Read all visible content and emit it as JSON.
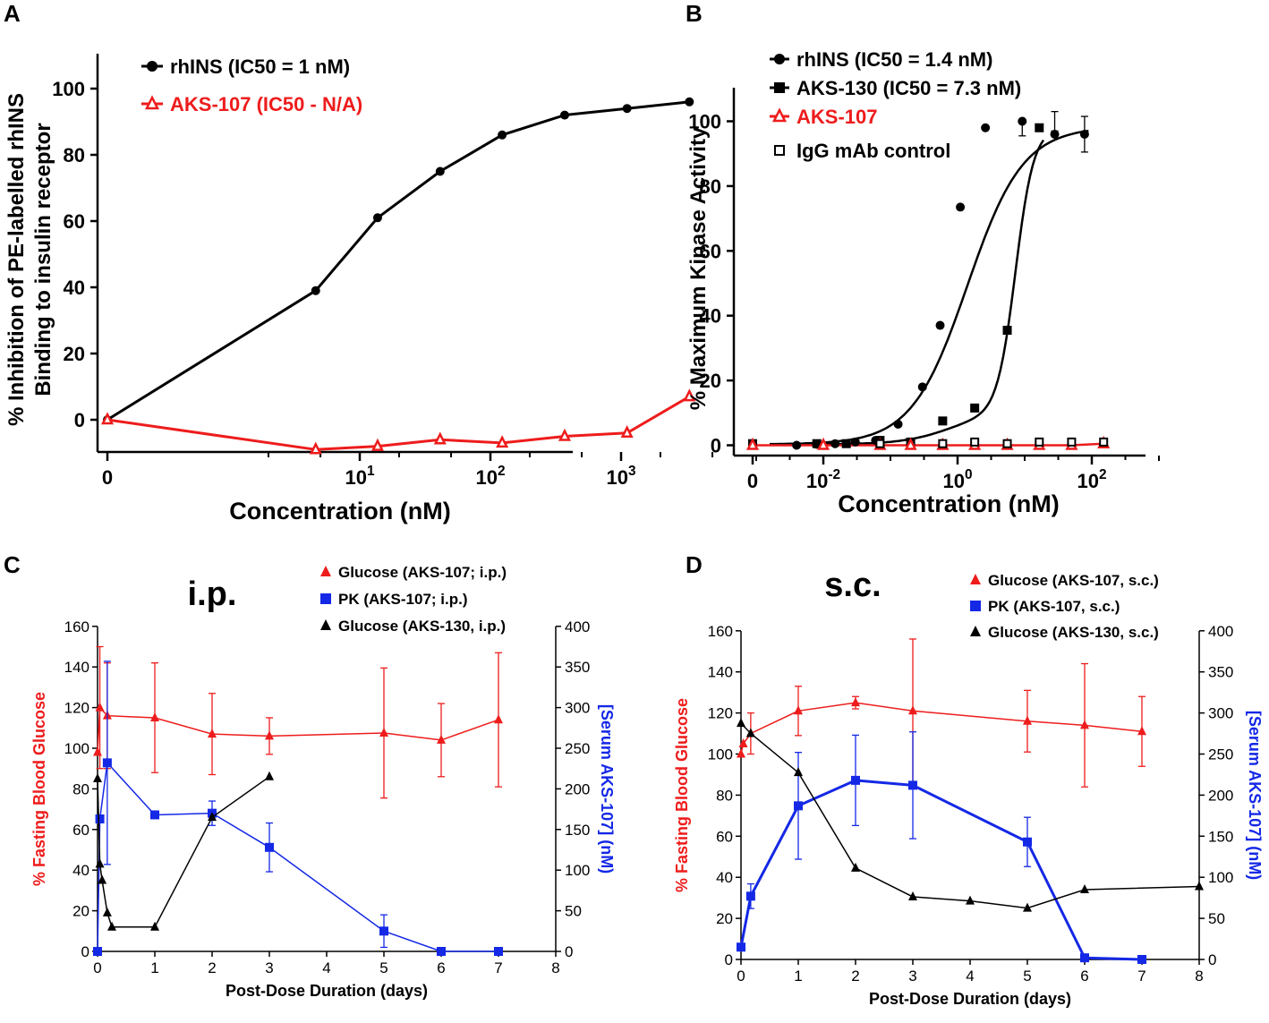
{
  "colors": {
    "black": "#000000",
    "red": "#ee1c1c",
    "blue": "#1428e6"
  },
  "chart_data": [
    {
      "panel": "A",
      "type": "line",
      "xscale": "symlog",
      "xlabel": "Concentration (nM)",
      "ylabel_line1": "% Inhibition of PE-labelled rhINS",
      "ylabel_line2": "Binding to insulin receptor",
      "ylim": [
        -10,
        110
      ],
      "yticks": [
        "0",
        "20",
        "40",
        "60",
        "80",
        "100"
      ],
      "xticks": [
        {
          "base": "0",
          "exp": ""
        },
        {
          "base": "10",
          "exp": "1"
        },
        {
          "base": "10",
          "exp": "2"
        },
        {
          "base": "10",
          "exp": "3"
        }
      ],
      "series": [
        {
          "name": "rhINS (IC50 = 1 nM)",
          "color": "#000000",
          "marker": "circle",
          "x": [
            0,
            4.6,
            13.7,
            41.2,
            123,
            370,
            1111,
            3333
          ],
          "y": [
            0,
            39,
            61,
            75,
            86,
            92,
            94,
            96
          ]
        },
        {
          "name": "AKS-107 (IC50 - N/A)",
          "color": "#ee1c1c",
          "marker": "open-triangle",
          "x": [
            0,
            4.6,
            13.7,
            41.2,
            123,
            370,
            1111,
            3333
          ],
          "y": [
            0,
            -9,
            -8,
            -6,
            -7,
            -5,
            -4,
            7
          ]
        }
      ]
    },
    {
      "panel": "B",
      "type": "scatter",
      "xscale": "symlog",
      "xlabel": "Concentration (nM)",
      "ylabel": "% Maximum Kinase Activity",
      "ylim": [
        -3,
        110
      ],
      "yticks": [
        "0",
        "20",
        "40",
        "60",
        "80",
        "100"
      ],
      "xticks": [
        {
          "base": "0",
          "exp": ""
        },
        {
          "base": "10",
          "exp": "-2"
        },
        {
          "base": "10",
          "exp": "0"
        },
        {
          "base": "10",
          "exp": "2"
        }
      ],
      "series": [
        {
          "name": "rhINS (IC50 = 1.4 nM)",
          "color": "#000000",
          "marker": "circle",
          "fit": "sigmoid-1",
          "x": [
            0,
            0.004,
            0.008,
            0.015,
            0.03,
            0.06,
            0.13,
            0.3,
            0.55,
            1.1,
            2.6,
            9.2,
            28,
            78
          ],
          "y": [
            0.5,
            0,
            0.3,
            0.5,
            1,
            1.5,
            6.5,
            18,
            37,
            73.5,
            98,
            100,
            96,
            96
          ]
        },
        {
          "name": "AKS-130 (IC50 = 7.3 nM)",
          "color": "#000000",
          "marker": "square",
          "fit": "sigmoid-2",
          "x": [
            0,
            0.008,
            0.022,
            0.07,
            0.2,
            0.6,
            1.8,
            5.5,
            16.5
          ],
          "y": [
            0.5,
            0.5,
            0.5,
            1.5,
            1,
            7.5,
            11.5,
            35.5,
            98
          ]
        },
        {
          "name": "AKS-107",
          "color": "#ee1c1c",
          "marker": "open-triangle",
          "x": [
            0,
            0.01,
            0.07,
            0.2,
            0.6,
            1.8,
            5.5,
            16.5,
            50,
            150
          ],
          "y": [
            0,
            0,
            0,
            0,
            0,
            0,
            0,
            0,
            0,
            0.5
          ]
        },
        {
          "name": "IgG mAb control",
          "color": "#000000",
          "marker": "open-square",
          "x": [
            0.07,
            0.6,
            1.8,
            5.5,
            16.5,
            50,
            150
          ],
          "y": [
            0.5,
            0.5,
            1,
            0.5,
            1,
            1,
            1
          ]
        }
      ],
      "errors": [
        {
          "x": 9.2,
          "y": 98,
          "err": 2.5
        },
        {
          "x": 28,
          "y": 100,
          "err": 3
        },
        {
          "x": 78,
          "y": 96,
          "err": 5.5
        }
      ]
    },
    {
      "panel": "C",
      "type": "line",
      "title": "i.p.",
      "xlabel": "Post-Dose Duration (days)",
      "ylabel_left": "% Fasting Blood Glucose",
      "ylabel_right": "[Serum AKS-107] (nM)",
      "xlim": [
        0,
        8
      ],
      "ylim_left": [
        0,
        160
      ],
      "ylim_right": [
        0,
        400
      ],
      "xticks": [
        "0",
        "1",
        "2",
        "3",
        "4",
        "5",
        "6",
        "7",
        "8"
      ],
      "yticks_left": [
        "0",
        "20",
        "40",
        "60",
        "80",
        "100",
        "120",
        "140",
        "160"
      ],
      "yticks_right": [
        "0",
        "50",
        "100",
        "150",
        "200",
        "250",
        "300",
        "350",
        "400"
      ],
      "series": [
        {
          "name": "Glucose (AKS-107; i.p.)",
          "color": "#ee1c1c",
          "marker": "triangle",
          "axis": "left",
          "x": [
            0,
            0.04,
            0.17,
            1,
            2,
            3,
            5,
            6,
            7
          ],
          "y": [
            98,
            120,
            116,
            115,
            107,
            106,
            107.5,
            104,
            114
          ],
          "err": [
            0,
            30,
            26,
            27,
            20,
            9,
            32,
            18,
            33
          ]
        },
        {
          "name": "PK (AKS-107; i.p.)",
          "color": "#1428e6",
          "marker": "square",
          "axis": "right",
          "x": [
            0,
            0.04,
            0.17,
            1,
            2,
            3,
            5,
            6,
            7
          ],
          "y": [
            0,
            163,
            232,
            168,
            170,
            128,
            25,
            0,
            0
          ],
          "err": [
            0,
            0,
            125,
            0,
            15,
            30,
            20,
            0,
            0
          ]
        },
        {
          "name": "Glucose (AKS-130, i.p.)",
          "color": "#000000",
          "marker": "triangle",
          "axis": "left",
          "x": [
            0,
            0.04,
            0.08,
            0.17,
            0.25,
            1,
            2,
            3
          ],
          "y": [
            85,
            43,
            35,
            19,
            12,
            12,
            66,
            86
          ],
          "err": [
            0,
            0,
            0,
            0,
            0,
            0,
            0,
            0
          ]
        }
      ]
    },
    {
      "panel": "D",
      "type": "line",
      "title": "s.c.",
      "xlabel": "Post-Dose Duration (days)",
      "ylabel_left": "% Fasting Blood Glucose",
      "ylabel_right": "[Serum AKS-107] (nM)",
      "xlim": [
        0,
        8
      ],
      "ylim_left": [
        0,
        160
      ],
      "ylim_right": [
        0,
        400
      ],
      "xticks": [
        "0",
        "1",
        "2",
        "3",
        "4",
        "5",
        "6",
        "7",
        "8"
      ],
      "yticks_left": [
        "0",
        "20",
        "40",
        "60",
        "80",
        "100",
        "120",
        "140",
        "160"
      ],
      "yticks_right": [
        "0",
        "50",
        "100",
        "150",
        "200",
        "250",
        "300",
        "350",
        "400"
      ],
      "series": [
        {
          "name": "Glucose (AKS-107, s.c.)",
          "color": "#ee1c1c",
          "marker": "triangle",
          "axis": "left",
          "x": [
            0,
            0.04,
            0.17,
            1,
            2,
            3,
            5,
            6,
            7
          ],
          "y": [
            100,
            105,
            110,
            121,
            125,
            121,
            116,
            114,
            111
          ],
          "err": [
            0,
            0,
            10,
            12,
            3,
            35,
            15,
            30,
            17
          ]
        },
        {
          "name": "PK (AKS-107, s.c.)",
          "color": "#1428e6",
          "marker": "square",
          "axis": "right",
          "x": [
            0,
            0.17,
            1,
            2,
            3,
            5,
            6,
            7
          ],
          "y": [
            15,
            77,
            187,
            218,
            212,
            143,
            2,
            0
          ],
          "err": [
            0,
            15,
            65,
            55,
            65,
            30,
            0,
            0
          ]
        },
        {
          "name": "Glucose (AKS-130, s.c.)",
          "color": "#000000",
          "marker": "triangle",
          "axis": "left",
          "x": [
            0,
            0.17,
            1,
            2,
            3,
            4,
            5,
            6,
            8
          ],
          "y": [
            115,
            110,
            91,
            44.5,
            30.5,
            28.5,
            25,
            34,
            35.5
          ],
          "err": [
            0,
            0,
            0,
            0,
            0,
            0,
            0,
            0,
            0
          ]
        }
      ]
    }
  ]
}
